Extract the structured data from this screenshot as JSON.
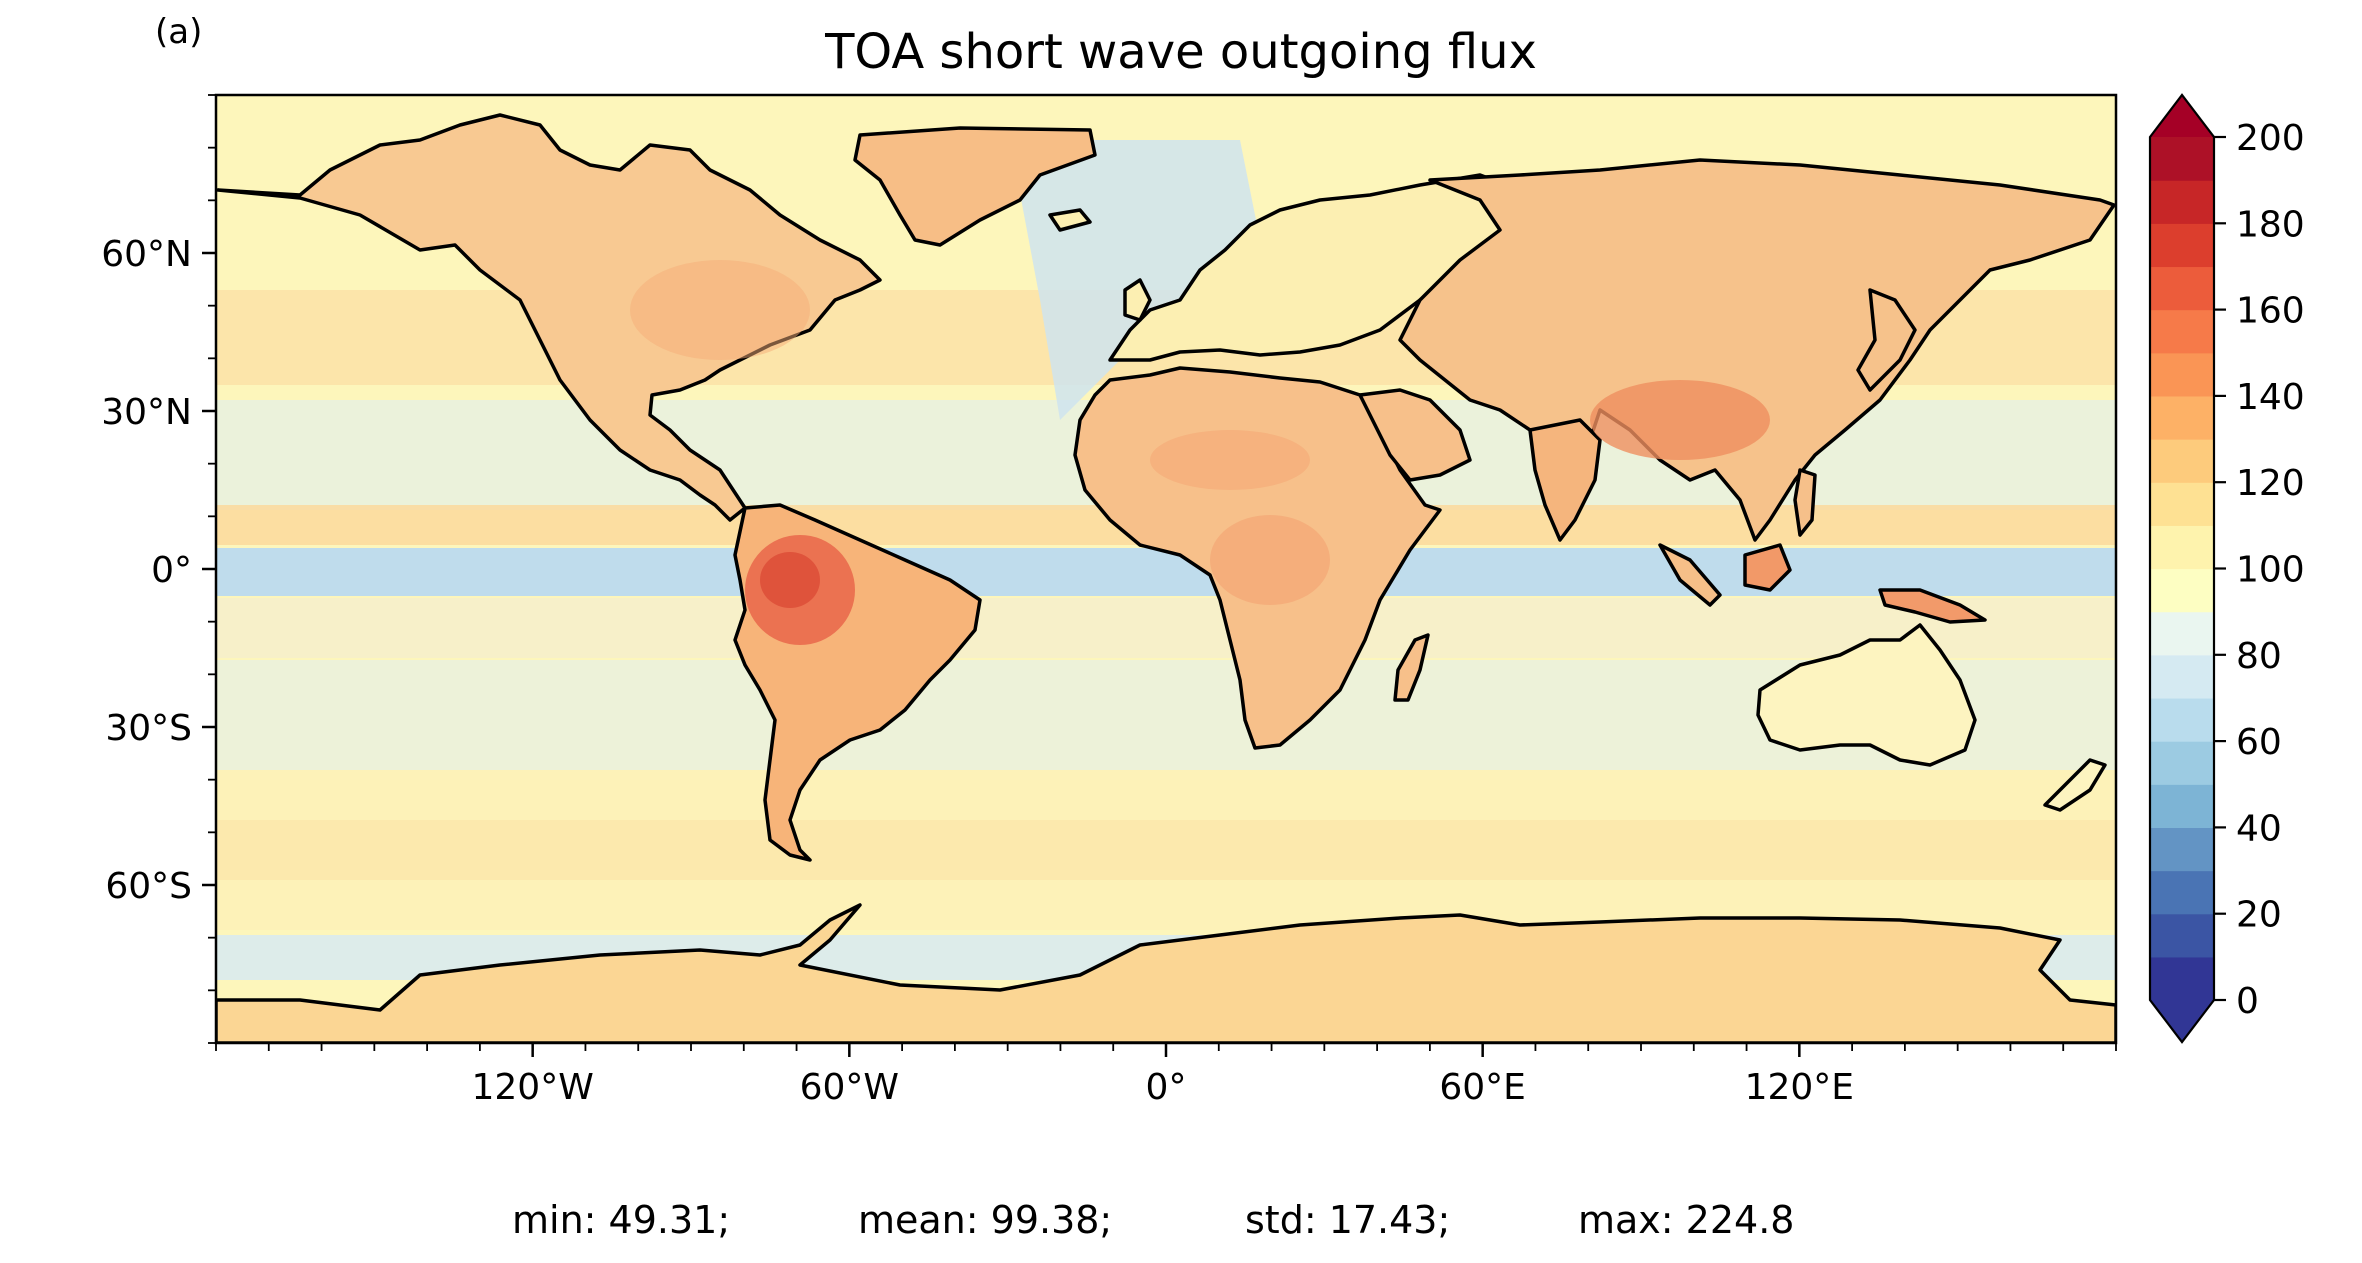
{
  "panel_label": "(a)",
  "title": "TOA short wave outgoing flux",
  "map": {
    "projection": "PlateCarree",
    "extent_lon": [
      -180,
      180
    ],
    "extent_lat": [
      -90,
      90
    ],
    "x_ticks": [
      {
        "lon": -120,
        "label": "120°W"
      },
      {
        "lon": -60,
        "label": "60°W"
      },
      {
        "lon": 0,
        "label": "0°"
      },
      {
        "lon": 60,
        "label": "60°E"
      },
      {
        "lon": 120,
        "label": "120°E"
      }
    ],
    "y_ticks": [
      {
        "lat": 60,
        "label": "60°N"
      },
      {
        "lat": 30,
        "label": "30°N"
      },
      {
        "lat": 0,
        "label": "0°"
      },
      {
        "lat": -30,
        "label": "30°S"
      },
      {
        "lat": -60,
        "label": "60°S"
      }
    ],
    "coastline_color": "#000000"
  },
  "colorbar": {
    "colormap": "RdYlBu_r",
    "min": 0,
    "max": 200,
    "step": 10,
    "extend": "both",
    "tick_labels": [
      "0",
      "20",
      "40",
      "60",
      "80",
      "100",
      "120",
      "140",
      "160",
      "180",
      "200"
    ],
    "colors": [
      "#313695",
      "#3b55a4",
      "#4a74b4",
      "#6394c4",
      "#7db4d5",
      "#9ccbe2",
      "#b9dced",
      "#d5eaf2",
      "#eaf6f0",
      "#fdfec2",
      "#fef3ad",
      "#fee193",
      "#fdcb7c",
      "#fdb166",
      "#fa9555",
      "#f67a49",
      "#ec5c3b",
      "#dc3e2d",
      "#c72627",
      "#ad1127",
      "#a50026"
    ]
  },
  "stats": {
    "min": "min: 49.31;",
    "mean": "mean: 99.38;",
    "std": "std: 17.43;",
    "max": "max: 224.8"
  },
  "regions": [
    {
      "name": "south-america",
      "color": "#f9b57a"
    },
    {
      "name": "amazon",
      "color": "#e8674a"
    },
    {
      "name": "africa",
      "color": "#f7bf86"
    },
    {
      "name": "asia",
      "color": "#f6c38c"
    },
    {
      "name": "antarctica",
      "color": "#f9cf8e"
    },
    {
      "name": "greenland",
      "color": "#f7be86"
    },
    {
      "name": "tropical-band",
      "color": "#cfe5f0"
    }
  ]
}
